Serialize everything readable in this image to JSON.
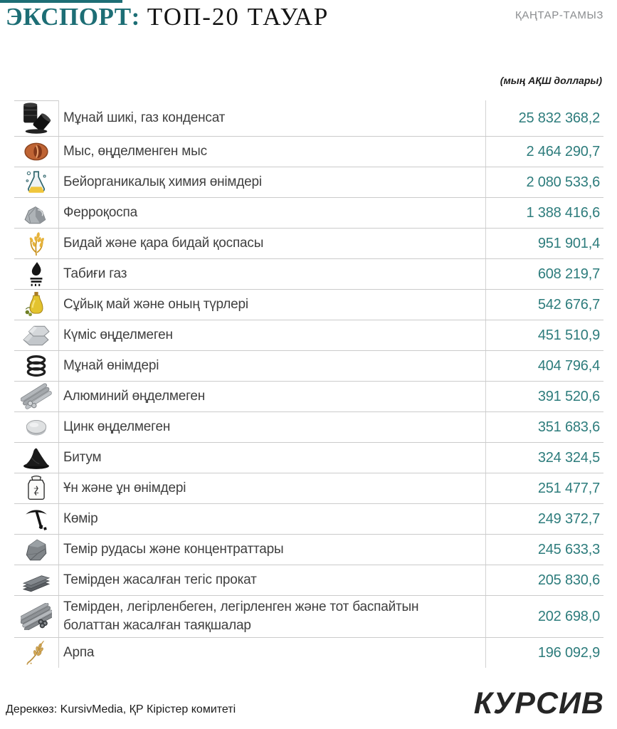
{
  "header": {
    "title_accent": "ЭКСПОРТ:",
    "title_rest": "ТОП-20 ТАУАР",
    "period": "ҚАҢТАР-ТАМЫЗ",
    "unit_note": "(мың АҚШ доллары)"
  },
  "colors": {
    "accent_teal": "#1d6e75",
    "value_teal": "#2d7c7c"
  },
  "table": {
    "rows": [
      {
        "icon": "oil-barrels",
        "label": "Мұнай шикі, газ конденсат",
        "value": "25 832 368,2"
      },
      {
        "icon": "copper-coil",
        "label": "Мыс, өңделменген мыс",
        "value": "2 464 290,7"
      },
      {
        "icon": "chemistry-flask",
        "label": "Бейорганикалық химия өнімдері",
        "value": "2 080 533,6"
      },
      {
        "icon": "ferroalloy-rocks",
        "label": "Ферроқоспа",
        "value": "1 388 416,6"
      },
      {
        "icon": "wheat",
        "label": "Бидай және  қара бидай қоспасы",
        "value": "951 901,4"
      },
      {
        "icon": "gas-flame",
        "label": "Табиғи газ",
        "value": "608 219,7"
      },
      {
        "icon": "oil-bottle",
        "label": "Сұйық май және оның түрлері",
        "value": "542 676,7"
      },
      {
        "icon": "silver-ingots",
        "label": "Күміс өңделмеген",
        "value": "451 510,9"
      },
      {
        "icon": "oil-drums",
        "label": "Мұнай өнімдері",
        "value": "404 796,4"
      },
      {
        "icon": "aluminum-rods",
        "label": "Алюминий өңделмеген",
        "value": "391 520,6"
      },
      {
        "icon": "zinc-disc",
        "label": "Цинк өңделмеген",
        "value": "351 683,6"
      },
      {
        "icon": "bitumen-pile",
        "label": "Битум",
        "value": "324 324,5"
      },
      {
        "icon": "flour-sack",
        "label": "Ұн және ұн өнімдері",
        "value": "251 477,7"
      },
      {
        "icon": "coal-pickaxe",
        "label": "Көмір",
        "value": "249 372,7"
      },
      {
        "icon": "iron-ore",
        "label": "Темір рудасы және концентраттары",
        "value": "245 633,3"
      },
      {
        "icon": "rolled-steel",
        "label": "Темірден жасалған тегіс прокат",
        "value": "205 830,6"
      },
      {
        "icon": "steel-pipes",
        "label": "Темірден, легірленбеген, легірленген және тот баспайтын болаттан жасалған таяқшалар",
        "value": "202 698,0"
      },
      {
        "icon": "barley",
        "label": "Арпа",
        "value": "196 092,9"
      }
    ]
  },
  "footer": {
    "source": "Дереккөз: KursivMedia, ҚР Кірістер комитеті",
    "logo": "КУРСИВ"
  },
  "chart_data": {
    "type": "table",
    "title": "ЭКСПОРТ: ТОП-20 ТАУАР",
    "subtitle": "ҚАҢТАР-ТАМЫЗ",
    "unit": "мың АҚШ доллары",
    "categories": [
      "Мұнай шикі, газ конденсат",
      "Мыс, өңделменген мыс",
      "Бейорганикалық химия өнімдері",
      "Ферроқоспа",
      "Бидай және қара бидай қоспасы",
      "Табиғи газ",
      "Сұйық май және оның түрлері",
      "Күміс өңделмеген",
      "Мұнай өнімдері",
      "Алюминий өңделмеген",
      "Цинк өңделмеген",
      "Битум",
      "Ұн және ұн өнімдері",
      "Көмір",
      "Темір рудасы және концентраттары",
      "Темірден жасалған тегіс прокат",
      "Темірден, легірленбеген, легірленген және тот баспайтын болаттан жасалған таяқшалар",
      "Арпа"
    ],
    "values": [
      25832368.2,
      2464290.7,
      2080533.6,
      1388416.6,
      951901.4,
      608219.7,
      542676.7,
      451510.9,
      404796.4,
      391520.6,
      351683.6,
      324324.5,
      251477.7,
      249372.7,
      245633.3,
      205830.6,
      202698.0,
      196092.9
    ],
    "source": "KursivMedia, ҚР Кірістер комитеті"
  }
}
